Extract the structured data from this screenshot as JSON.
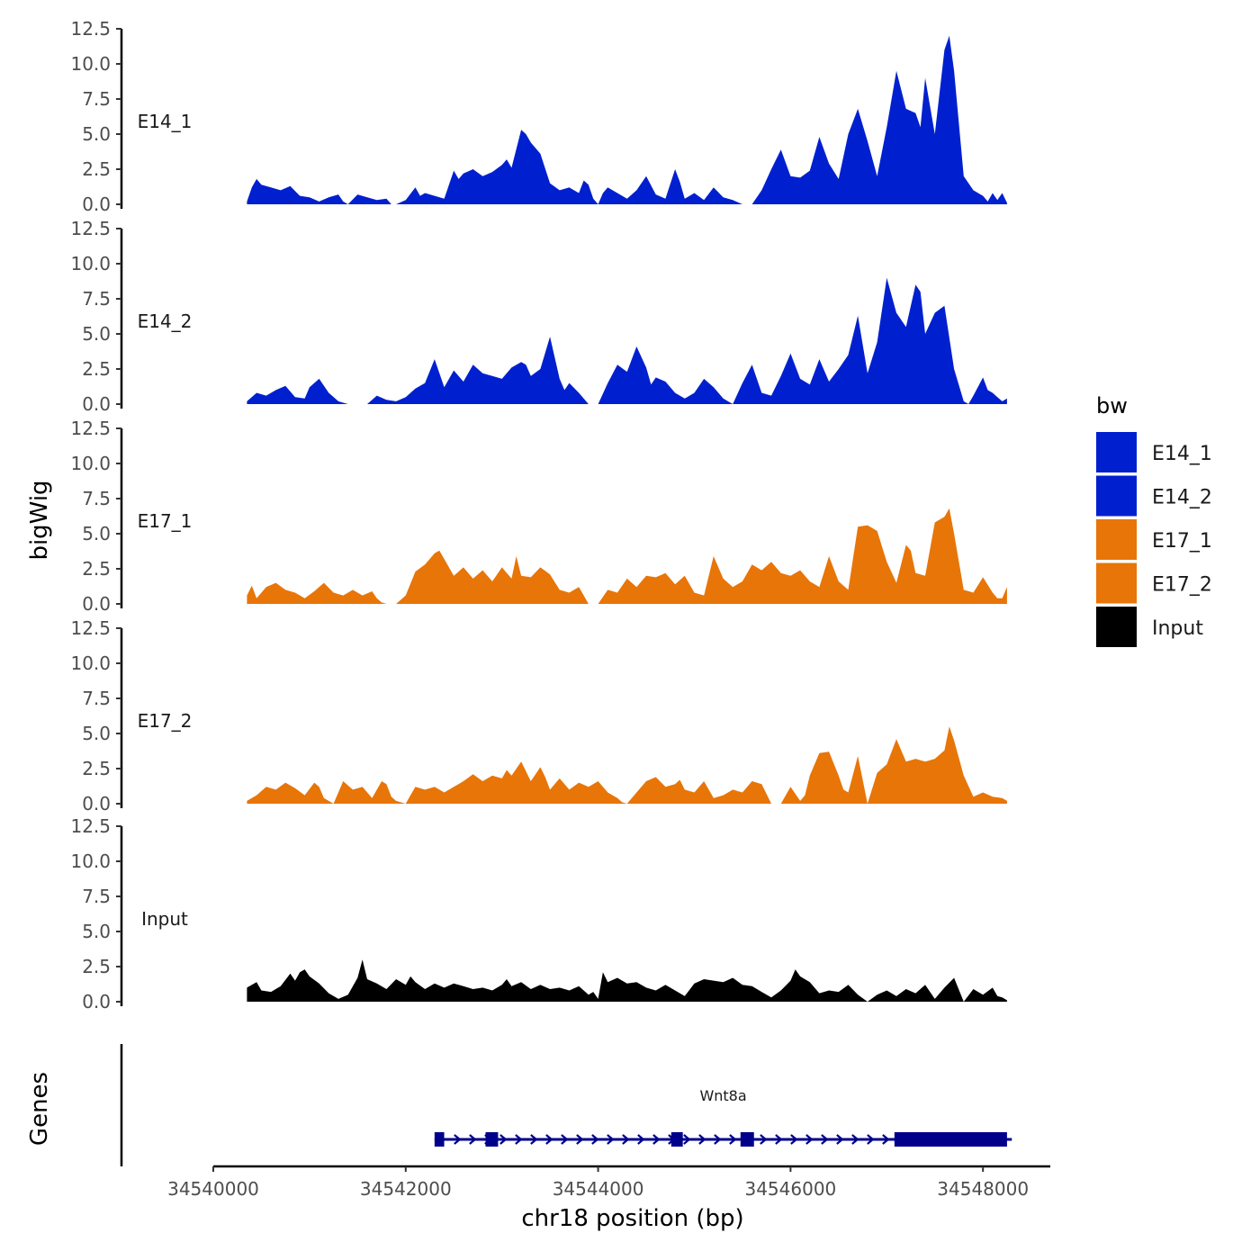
{
  "chart_data": {
    "type": "area",
    "ylabel": "bigWig",
    "xlabel": "chr18 position (bp)",
    "genes_label": "Genes",
    "xlim": [
      34540000,
      34548700
    ],
    "ylim": [
      0,
      12.5
    ],
    "x_ticks": [
      34540000,
      34542000,
      34544000,
      34546000,
      34548000
    ],
    "x_tick_labels": [
      "34540000",
      "34542000",
      "34544000",
      "34546000",
      "34548000"
    ],
    "y_ticks": [
      0,
      2.5,
      5,
      7.5,
      10,
      12.5
    ],
    "y_tick_labels": [
      "0.0",
      "2.5",
      "5.0",
      "7.5",
      "10.0",
      "12.5"
    ],
    "grid": false,
    "legend": {
      "title": "bw",
      "position": "right",
      "items": [
        {
          "label": "E14_1",
          "color": "#0020CF"
        },
        {
          "label": "E14_2",
          "color": "#0020CF"
        },
        {
          "label": "E17_1",
          "color": "#E87507"
        },
        {
          "label": "E17_2",
          "color": "#E87507"
        },
        {
          "label": "Input",
          "color": "#000000"
        }
      ]
    },
    "series": [
      {
        "name": "E14_1",
        "color": "#0020CF",
        "x": [
          34540350,
          34540400,
          34540450,
          34540500,
          34540600,
          34540700,
          34540800,
          34540900,
          34541000,
          34541100,
          34541200,
          34541300,
          34541350,
          34541400,
          34541500,
          34541600,
          34541700,
          34541800,
          34541850,
          34541900,
          34542000,
          34542100,
          34542150,
          34542200,
          34542300,
          34542400,
          34542500,
          34542550,
          34542600,
          34542700,
          34542800,
          34542900,
          34543000,
          34543050,
          34543100,
          34543200,
          34543250,
          34543300,
          34543400,
          34543500,
          34543600,
          34543700,
          34543800,
          34543850,
          34543900,
          34543950,
          34544000,
          34544050,
          34544100,
          34544200,
          34544300,
          34544400,
          34544500,
          34544600,
          34544700,
          34544800,
          34544850,
          34544900,
          34545000,
          34545100,
          34545200,
          34545300,
          34545400,
          34545500,
          34545600,
          34545700,
          34545800,
          34545900,
          34546000,
          34546100,
          34546200,
          34546300,
          34546400,
          34546500,
          34546600,
          34546700,
          34546800,
          34546900,
          34547000,
          34547100,
          34547200,
          34547300,
          34547350,
          34547400,
          34547500,
          34547600,
          34547650,
          34547700,
          34547800,
          34547900,
          34548000,
          34548050,
          34548100,
          34548150,
          34548200,
          34548250
        ],
        "y": [
          0.2,
          1.2,
          1.8,
          1.4,
          1.2,
          1.0,
          1.3,
          0.6,
          0.5,
          0.2,
          0.5,
          0.7,
          0.2,
          0,
          0.7,
          0.5,
          0.3,
          0.4,
          0,
          0,
          0.3,
          1.2,
          0.6,
          0.8,
          0.6,
          0.4,
          2.4,
          1.8,
          2.2,
          2.5,
          2.0,
          2.3,
          2.8,
          3.2,
          2.6,
          5.3,
          5.0,
          4.4,
          3.6,
          1.5,
          1.0,
          1.2,
          0.8,
          1.7,
          1.4,
          0.4,
          0,
          0.8,
          1.2,
          0.8,
          0.4,
          1.0,
          2.0,
          0.7,
          0.4,
          2.5,
          1.6,
          0.4,
          0.8,
          0.3,
          1.2,
          0.5,
          0.3,
          0,
          0,
          1.0,
          2.5,
          3.9,
          2.0,
          1.9,
          2.4,
          4.8,
          2.9,
          1.8,
          5.0,
          6.8,
          4.5,
          2.0,
          5.5,
          9.5,
          6.8,
          6.5,
          5.5,
          9.0,
          5.0,
          11.0,
          12.0,
          9.5,
          2.0,
          1.0,
          0.6,
          0.2,
          0.8,
          0.3,
          0.8,
          0.1
        ]
      },
      {
        "name": "E14_2",
        "color": "#0020CF",
        "x": [
          34540350,
          34540450,
          34540550,
          34540650,
          34540750,
          34540850,
          34540950,
          34541000,
          34541100,
          34541200,
          34541300,
          34541400,
          34541500,
          34541600,
          34541700,
          34541800,
          34541900,
          34542000,
          34542100,
          34542200,
          34542300,
          34542400,
          34542500,
          34542600,
          34542700,
          34542800,
          34542900,
          34543000,
          34543100,
          34543200,
          34543250,
          34543300,
          34543400,
          34543500,
          34543600,
          34543650,
          34543700,
          34543800,
          34543900,
          34544000,
          34544100,
          34544200,
          34544300,
          34544400,
          34544500,
          34544550,
          34544600,
          34544700,
          34544800,
          34544900,
          34545000,
          34545100,
          34545200,
          34545300,
          34545400,
          34545500,
          34545600,
          34545700,
          34545800,
          34545900,
          34546000,
          34546100,
          34546200,
          34546300,
          34546400,
          34546500,
          34546600,
          34546700,
          34546800,
          34546900,
          34547000,
          34547100,
          34547200,
          34547300,
          34547350,
          34547400,
          34547500,
          34547600,
          34547700,
          34547800,
          34547850,
          34547900,
          34548000,
          34548050,
          34548100,
          34548150,
          34548200,
          34548250
        ],
        "y": [
          0.2,
          0.8,
          0.6,
          1.0,
          1.3,
          0.5,
          0.4,
          1.2,
          1.8,
          0.8,
          0.2,
          0,
          0,
          0,
          0.6,
          0.3,
          0.2,
          0.5,
          1.1,
          1.5,
          3.2,
          1.2,
          2.4,
          1.6,
          2.8,
          2.2,
          2.0,
          1.8,
          2.6,
          3.0,
          2.8,
          2.0,
          2.5,
          4.8,
          1.8,
          1.0,
          1.5,
          0.8,
          0,
          0,
          1.5,
          2.8,
          2.3,
          4.1,
          2.6,
          1.4,
          1.9,
          1.6,
          0.8,
          0.4,
          0.8,
          1.8,
          1.2,
          0.4,
          0,
          1.5,
          2.8,
          0.8,
          0.6,
          2.0,
          3.6,
          1.8,
          1.4,
          3.2,
          1.6,
          2.5,
          3.5,
          6.3,
          2.2,
          4.4,
          9.0,
          6.5,
          5.5,
          8.5,
          8.0,
          5.0,
          6.5,
          7.0,
          2.5,
          0.2,
          0,
          0.6,
          1.9,
          1.0,
          0.8,
          0.5,
          0.2,
          0.4
        ]
      },
      {
        "name": "E17_1",
        "color": "#E87507",
        "x": [
          34540350,
          34540400,
          34540450,
          34540550,
          34540650,
          34540750,
          34540850,
          34540950,
          34541050,
          34541150,
          34541250,
          34541350,
          34541450,
          34541550,
          34541650,
          34541700,
          34541750,
          34541800,
          34541850,
          34541900,
          34542000,
          34542100,
          34542200,
          34542300,
          34542350,
          34542400,
          34542500,
          34542600,
          34542700,
          34542800,
          34542900,
          34543000,
          34543100,
          34543150,
          34543200,
          34543300,
          34543400,
          34543500,
          34543600,
          34543700,
          34543800,
          34543850,
          34543900,
          34544000,
          34544100,
          34544200,
          34544300,
          34544400,
          34544500,
          34544600,
          34544700,
          34544800,
          34544900,
          34545000,
          34545100,
          34545200,
          34545300,
          34545400,
          34545500,
          34545600,
          34545700,
          34545800,
          34545900,
          34546000,
          34546100,
          34546200,
          34546300,
          34546400,
          34546500,
          34546600,
          34546700,
          34546800,
          34546900,
          34547000,
          34547100,
          34547200,
          34547250,
          34547300,
          34547400,
          34547500,
          34547600,
          34547650,
          34547700,
          34547800,
          34547900,
          34548000,
          34548100,
          34548150,
          34548200,
          34548250
        ],
        "y": [
          0.6,
          1.3,
          0.4,
          1.2,
          1.5,
          1.0,
          0.8,
          0.4,
          0.9,
          1.5,
          0.8,
          0.6,
          1.0,
          0.6,
          0.9,
          0.4,
          0.1,
          0,
          0,
          0,
          0.6,
          2.3,
          2.8,
          3.6,
          3.8,
          3.2,
          2.0,
          2.6,
          1.8,
          2.4,
          1.6,
          2.6,
          1.8,
          3.4,
          2.0,
          1.9,
          2.6,
          2.1,
          1.0,
          0.8,
          1.2,
          0.6,
          0,
          0,
          1.0,
          0.8,
          1.8,
          1.2,
          2.0,
          1.9,
          2.2,
          1.4,
          2.0,
          0.8,
          0.6,
          3.4,
          1.8,
          1.2,
          1.6,
          2.8,
          2.4,
          3.0,
          2.2,
          2.0,
          2.4,
          1.6,
          1.2,
          3.4,
          1.6,
          1.0,
          5.5,
          5.6,
          5.2,
          3.0,
          1.5,
          4.2,
          3.8,
          2.2,
          2.0,
          5.8,
          6.2,
          6.8,
          5.0,
          1.0,
          0.8,
          1.9,
          0.8,
          0.4,
          0.4,
          1.2
        ]
      },
      {
        "name": "E17_2",
        "color": "#E87507",
        "x": [
          34540350,
          34540450,
          34540550,
          34540650,
          34540750,
          34540850,
          34540950,
          34541050,
          34541100,
          34541150,
          34541250,
          34541350,
          34541450,
          34541550,
          34541650,
          34541750,
          34541800,
          34541850,
          34541900,
          34542000,
          34542050,
          34542100,
          34542200,
          34542300,
          34542400,
          34542500,
          34542600,
          34542700,
          34542800,
          34542900,
          34543000,
          34543050,
          34543100,
          34543200,
          34543300,
          34543400,
          34543450,
          34543500,
          34543600,
          34543700,
          34543800,
          34543900,
          34544000,
          34544100,
          34544200,
          34544250,
          34544300,
          34544400,
          34544500,
          34544600,
          34544700,
          34544800,
          34544850,
          34544900,
          34545000,
          34545100,
          34545200,
          34545300,
          34545400,
          34545500,
          34545600,
          34545700,
          34545800,
          34545900,
          34546000,
          34546100,
          34546150,
          34546200,
          34546300,
          34546400,
          34546500,
          34546550,
          34546600,
          34546700,
          34546800,
          34546900,
          34547000,
          34547100,
          34547200,
          34547300,
          34547400,
          34547500,
          34547600,
          34547650,
          34547700,
          34547800,
          34547900,
          34548000,
          34548100,
          34548200,
          34548250
        ],
        "y": [
          0.2,
          0.6,
          1.2,
          1.0,
          1.5,
          1.1,
          0.6,
          1.5,
          1.2,
          0.4,
          0,
          1.6,
          1.0,
          1.2,
          0.4,
          1.6,
          1.4,
          0.5,
          0.2,
          0,
          0.6,
          1.2,
          1.0,
          1.2,
          0.8,
          1.2,
          1.6,
          2.1,
          1.6,
          2.0,
          1.8,
          2.4,
          2.0,
          3.0,
          1.6,
          2.6,
          1.9,
          1.0,
          1.8,
          1.0,
          1.5,
          1.2,
          1.6,
          0.8,
          0.4,
          0.1,
          0,
          0.8,
          1.6,
          1.9,
          1.2,
          1.4,
          1.7,
          1.0,
          0.8,
          1.6,
          0.4,
          0.6,
          1.0,
          0.8,
          1.6,
          1.4,
          0,
          0,
          1.2,
          0.2,
          0.6,
          2.0,
          3.6,
          3.7,
          2.0,
          1.0,
          0.8,
          3.4,
          0,
          2.2,
          2.8,
          4.6,
          3.0,
          3.2,
          3.0,
          3.2,
          3.8,
          5.5,
          4.5,
          2.0,
          0.5,
          0.8,
          0.5,
          0.4,
          0.2
        ]
      },
      {
        "name": "Input",
        "color": "#000000",
        "x": [
          34540350,
          34540400,
          34540450,
          34540500,
          34540600,
          34540700,
          34540800,
          34540850,
          34540900,
          34540950,
          34541000,
          34541100,
          34541200,
          34541300,
          34541400,
          34541500,
          34541550,
          34541600,
          34541700,
          34541800,
          34541900,
          34542000,
          34542050,
          34542100,
          34542200,
          34542300,
          34542400,
          34542500,
          34542600,
          34542700,
          34542800,
          34542900,
          34543000,
          34543050,
          34543100,
          34543200,
          34543300,
          34543400,
          34543500,
          34543600,
          34543700,
          34543800,
          34543900,
          34543950,
          34544000,
          34544050,
          34544100,
          34544200,
          34544300,
          34544400,
          34544500,
          34544600,
          34544700,
          34544800,
          34544900,
          34545000,
          34545100,
          34545200,
          34545300,
          34545400,
          34545500,
          34545600,
          34545700,
          34545800,
          34545900,
          34546000,
          34546050,
          34546100,
          34546200,
          34546300,
          34546400,
          34546500,
          34546600,
          34546700,
          34546800,
          34546900,
          34547000,
          34547100,
          34547200,
          34547300,
          34547400,
          34547500,
          34547600,
          34547700,
          34547800,
          34547900,
          34548000,
          34548100,
          34548150,
          34548200,
          34548250
        ],
        "y": [
          1.0,
          1.2,
          1.4,
          0.8,
          0.7,
          1.1,
          2.0,
          1.5,
          2.1,
          2.3,
          1.8,
          1.3,
          0.6,
          0.2,
          0.5,
          1.7,
          3.0,
          1.6,
          1.3,
          0.9,
          1.6,
          1.2,
          1.8,
          1.4,
          0.9,
          1.3,
          1.0,
          1.3,
          1.1,
          0.9,
          1.0,
          0.8,
          1.2,
          1.6,
          1.1,
          1.4,
          0.9,
          1.2,
          0.9,
          1.0,
          0.8,
          1.1,
          0.5,
          0.7,
          0.2,
          2.1,
          1.4,
          1.7,
          1.3,
          1.4,
          1.0,
          0.8,
          1.2,
          0.8,
          0.4,
          1.3,
          1.6,
          1.5,
          1.4,
          1.7,
          1.2,
          1.1,
          0.7,
          0.3,
          0.8,
          1.5,
          2.3,
          1.8,
          1.4,
          0.6,
          0.8,
          0.7,
          1.2,
          0.5,
          0,
          0.5,
          0.8,
          0.4,
          0.9,
          0.6,
          1.2,
          0.2,
          1.0,
          1.7,
          0,
          0.9,
          0.5,
          1.0,
          0.4,
          0.3,
          0.1
        ]
      }
    ],
    "genes": [
      {
        "name": "Wnt8a",
        "color": "#00008B",
        "strand": "+",
        "start": 34542300,
        "end": 34548300,
        "exons": [
          {
            "start": 34542300,
            "end": 34542400
          },
          {
            "start": 34542830,
            "end": 34542960
          },
          {
            "start": 34544760,
            "end": 34544880
          },
          {
            "start": 34545480,
            "end": 34545620
          },
          {
            "start": 34547080,
            "end": 34548250
          }
        ]
      }
    ]
  }
}
